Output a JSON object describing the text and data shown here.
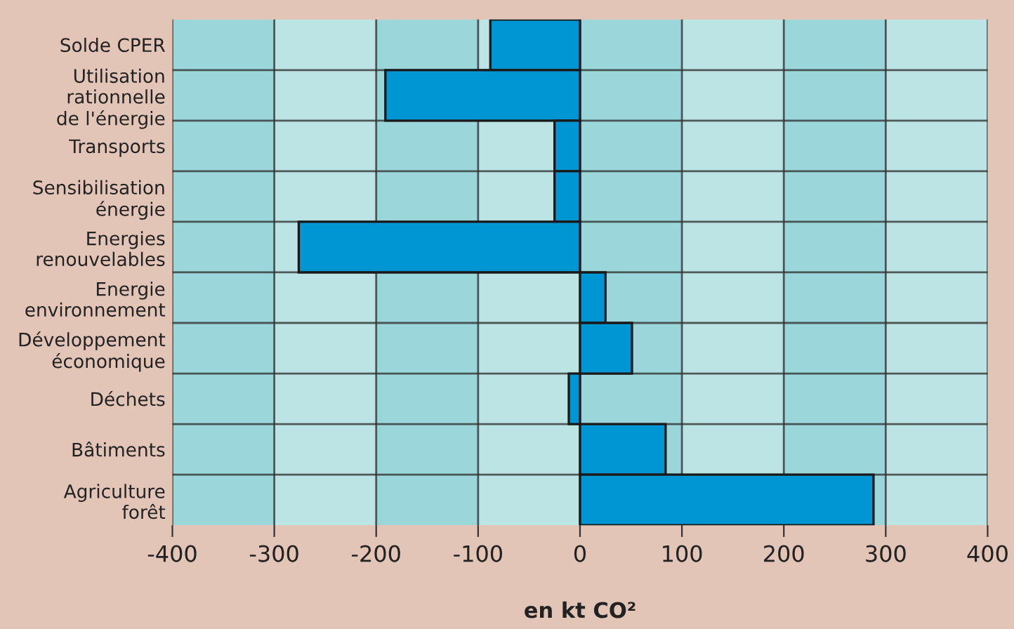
{
  "chart_data": {
    "type": "bar",
    "orientation": "horizontal",
    "categories": [
      "Solde CPER",
      "Utilisation\nrationnelle\nde l'énergie",
      "Transports",
      "Sensibilisation\nénergie",
      "Energies\nrenouvelables",
      "Energie\nenvironnement",
      "Développement\néconomique",
      "Déchets",
      "Bâtiments",
      "Agriculture\nforêt"
    ],
    "values": [
      -88,
      -191,
      -25,
      -25,
      -276,
      25,
      51,
      -11,
      84,
      288
    ],
    "color": "#0095d3",
    "xlabel": "en kt CO²",
    "xlim": [
      -400,
      400
    ],
    "xticks": [
      -400,
      -300,
      -200,
      -100,
      0,
      100,
      200,
      300,
      400
    ],
    "grid": true,
    "bands": [
      {
        "axis": "x",
        "from": -400,
        "to": -300,
        "color": "#9bd6da"
      },
      {
        "axis": "x",
        "from": -300,
        "to": -200,
        "color": "#bde4e4"
      },
      {
        "axis": "x",
        "from": -200,
        "to": -100,
        "color": "#9bd6da"
      },
      {
        "axis": "x",
        "from": -100,
        "to": 0,
        "color": "#bde4e4"
      },
      {
        "axis": "x",
        "from": 0,
        "to": 100,
        "color": "#9bd6da"
      },
      {
        "axis": "x",
        "from": 100,
        "to": 200,
        "color": "#bde4e4"
      },
      {
        "axis": "x",
        "from": 200,
        "to": 300,
        "color": "#9bd6da"
      },
      {
        "axis": "x",
        "from": 300,
        "to": 400,
        "color": "#bde4e4"
      }
    ]
  }
}
